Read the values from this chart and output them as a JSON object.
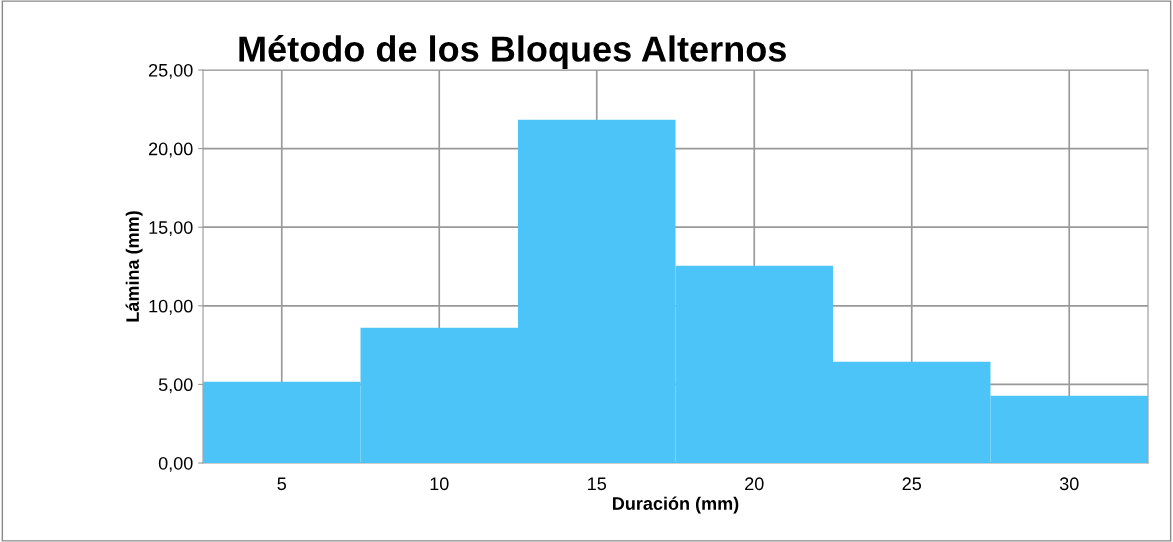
{
  "chart_data": {
    "type": "bar",
    "title": "Método de los Bloques Alternos",
    "xlabel": "Duración (mm)",
    "ylabel": "Lámina (mm)",
    "categories": [
      "5",
      "10",
      "15",
      "20",
      "25",
      "30"
    ],
    "values": [
      5.17,
      8.61,
      21.84,
      12.55,
      6.44,
      4.28
    ],
    "color": "#4cc4f8",
    "ylim": [
      0,
      25
    ],
    "yticks": [
      {
        "value": 0,
        "label": "0,00"
      },
      {
        "value": 5,
        "label": "5,00"
      },
      {
        "value": 10,
        "label": "10,00"
      },
      {
        "value": 15,
        "label": "15,00"
      },
      {
        "value": 20,
        "label": "20,00"
      },
      {
        "value": 25,
        "label": "25,00"
      }
    ],
    "grid": true
  }
}
